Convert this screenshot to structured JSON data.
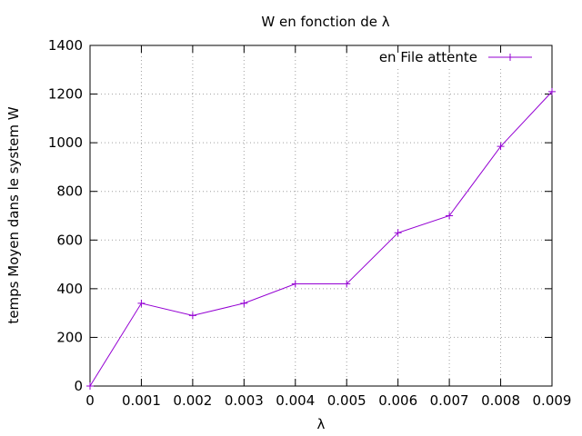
{
  "chart_data": {
    "type": "line",
    "title": "W en fonction de λ",
    "xlabel": "λ",
    "ylabel": "temps Moyen dans le system W",
    "xlim": [
      0,
      0.009
    ],
    "ylim": [
      0,
      1400
    ],
    "xticks": [
      "0",
      "0.001",
      "0.002",
      "0.003",
      "0.004",
      "0.005",
      "0.006",
      "0.007",
      "0.008",
      "0.009"
    ],
    "yticks": [
      "0",
      "200",
      "400",
      "600",
      "800",
      "1000",
      "1200",
      "1400"
    ],
    "grid": true,
    "legend_position": "top-right",
    "series": [
      {
        "name": "en File attente",
        "color": "#9400d3",
        "marker": "plus",
        "x": [
          0,
          0.001,
          0.002,
          0.003,
          0.004,
          0.005,
          0.006,
          0.007,
          0.008,
          0.009
        ],
        "y": [
          0,
          340,
          290,
          340,
          420,
          420,
          630,
          700,
          985,
          1210
        ]
      }
    ]
  }
}
